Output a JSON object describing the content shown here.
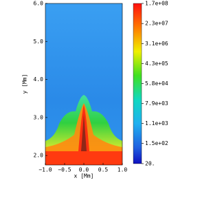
{
  "chart_data": {
    "type": "field",
    "xlabel": "x [Mm]",
    "ylabel": "y [Mm]",
    "xlim": [
      -1,
      1
    ],
    "xticks": [
      {
        "value": -1,
        "label": "−1.0"
      },
      {
        "value": -0.5,
        "label": "−0.5"
      },
      {
        "value": 0,
        "label": "0.0"
      },
      {
        "value": 0.5,
        "label": "0.5"
      },
      {
        "value": 1,
        "label": "1.0"
      }
    ],
    "ylim": [
      1.75,
      6
    ],
    "yticks": [
      {
        "value": 2,
        "label": "2.0"
      },
      {
        "value": 3,
        "label": "3.0"
      },
      {
        "value": 4,
        "label": "4.0"
      },
      {
        "value": 5,
        "label": "5.0"
      },
      {
        "value": 6,
        "label": "6.0"
      }
    ],
    "colorbar": {
      "log": true,
      "lim": [
        20,
        170000000
      ],
      "ticks": [
        {
          "value": 170000000,
          "label": "1.7e+08"
        },
        {
          "value": 23000000,
          "label": "2.3e+07"
        },
        {
          "value": 3100000,
          "label": "3.1e+06"
        },
        {
          "value": 430000,
          "label": "4.3e+05"
        },
        {
          "value": 58000,
          "label": "5.8e+04"
        },
        {
          "value": 7900,
          "label": "7.9e+03"
        },
        {
          "value": 1100,
          "label": "1.1e+03"
        },
        {
          "value": 150,
          "label": "1.5e+02"
        },
        {
          "value": 20,
          "label": "20."
        }
      ]
    }
  }
}
